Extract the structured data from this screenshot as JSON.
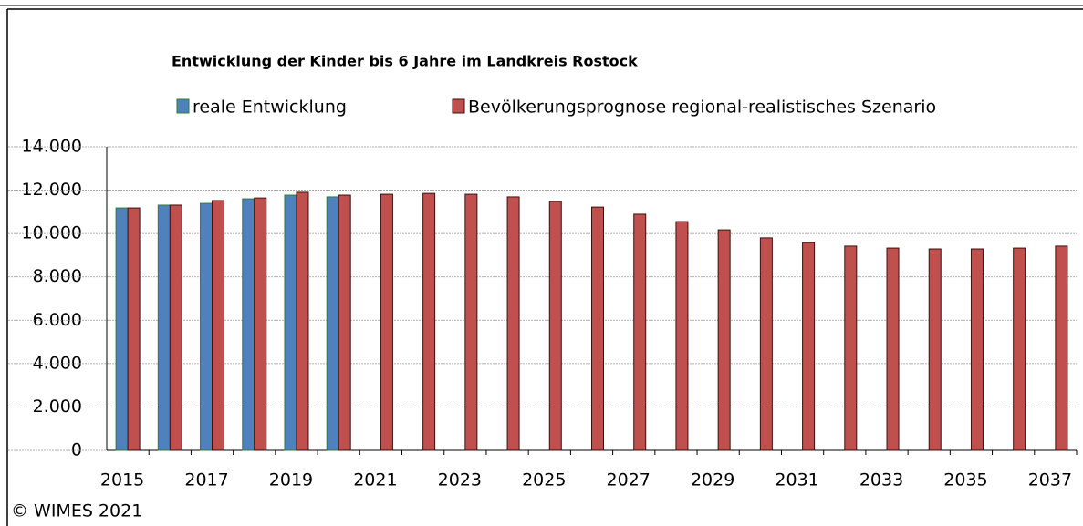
{
  "chart_data": {
    "type": "bar",
    "title": "Entwicklung der Kinder bis 6 Jahre im Landkreis Rostock",
    "source": "© WIMES 2021",
    "categories": [
      "2015",
      null,
      "2017",
      null,
      "2019",
      null,
      "2021",
      null,
      "2023",
      null,
      "2025",
      null,
      "2027",
      null,
      "2029",
      null,
      "2031",
      null,
      "2033",
      null,
      "2035",
      null,
      "2037"
    ],
    "series": [
      {
        "name": "reale Entwicklung",
        "color": "#4f81bd",
        "stroke": "#2e7d32",
        "values": [
          11180,
          11310,
          11390,
          11600,
          11770,
          11690,
          null,
          null,
          null,
          null,
          null,
          null,
          null,
          null,
          null,
          null,
          null,
          null,
          null,
          null,
          null,
          null,
          null
        ]
      },
      {
        "name": "Bevölkerungsprognose regional-realistisches Szenario",
        "color": "#c0504d",
        "stroke": "#3a1010",
        "values": [
          11180,
          11310,
          11520,
          11640,
          11900,
          11770,
          11810,
          11850,
          11810,
          11690,
          11480,
          11220,
          10890,
          10550,
          10170,
          9800,
          9580,
          9420,
          9330,
          9290,
          9290,
          9330,
          9420
        ]
      }
    ],
    "ylim": [
      0,
      14000
    ],
    "yticks": [
      0,
      {
        "value": 2000,
        "label": "2.000"
      },
      {
        "value": 4000,
        "label": "4.000"
      },
      {
        "value": 6000,
        "label": "6.000"
      },
      {
        "value": 8000,
        "label": "8.000"
      },
      {
        "value": 10000,
        "label": "10.000"
      },
      {
        "value": 12000,
        "label": "12.000"
      },
      {
        "value": 14000,
        "label": "14.000"
      }
    ],
    "grid": true,
    "legend": "top"
  }
}
